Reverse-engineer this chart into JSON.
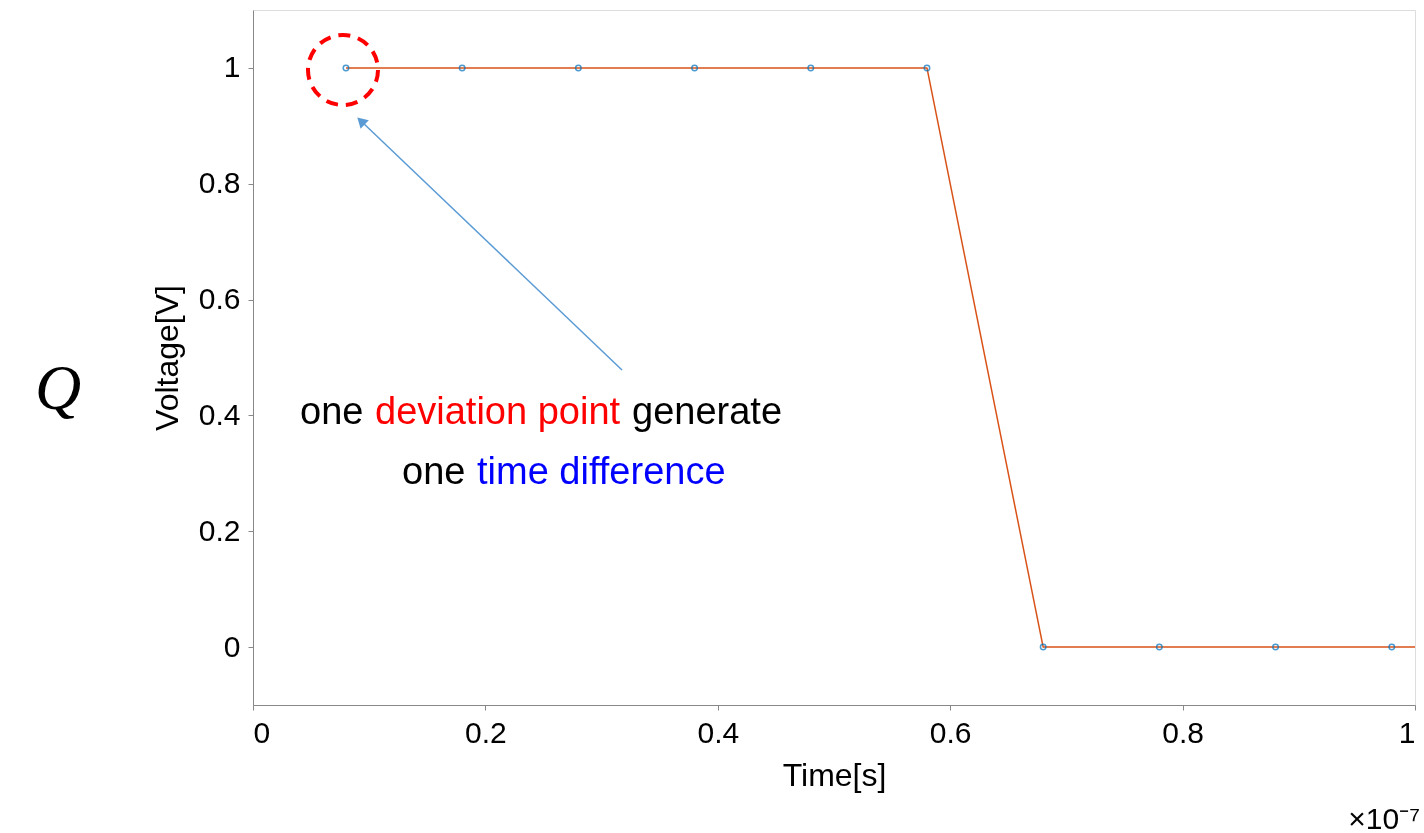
{
  "chart_data": {
    "type": "line",
    "xlabel": "Time[s]",
    "ylabel": "Voltage[V]",
    "xlim": [
      0,
      1
    ],
    "xticks": [
      0,
      0.2,
      0.4,
      0.6,
      0.8,
      1
    ],
    "ylim": [
      -0.1,
      1.1
    ],
    "yticks": [
      0,
      0.2,
      0.4,
      0.6,
      0.8,
      1
    ],
    "series": [
      {
        "type": "line",
        "color": "#d95319",
        "x": [
          0.08,
          0.18,
          0.28,
          0.38,
          0.48,
          0.58,
          0.68,
          0.78,
          0.88,
          0.98,
          1.0
        ],
        "values": [
          1,
          1,
          1,
          1,
          1,
          1,
          0,
          0,
          0,
          0,
          0
        ]
      },
      {
        "type": "scatter",
        "color": "#0072bd",
        "marker": "circle",
        "x": [
          0.08,
          0.18,
          0.28,
          0.38,
          0.48,
          0.58,
          0.68,
          0.78,
          0.88,
          0.98
        ],
        "values": [
          1,
          1,
          1,
          1,
          1,
          1,
          0,
          0,
          0,
          0
        ]
      }
    ],
    "annotations": [
      "Q",
      "one",
      "deviation point",
      "generate",
      "one",
      "time difference",
      "×10⁻⁷"
    ]
  }
}
